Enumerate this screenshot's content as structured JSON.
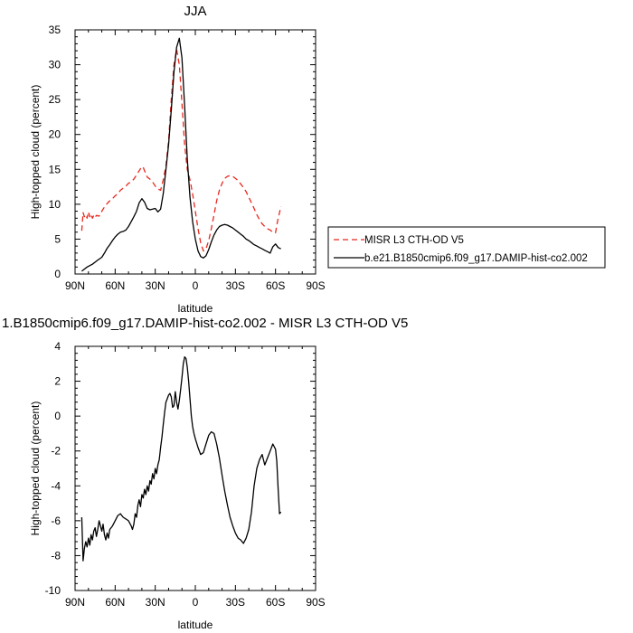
{
  "chart_data": [
    {
      "type": "line",
      "title": "JJA",
      "xlabel": "latitude",
      "ylabel": "High-topped cloud (percent)",
      "xlim": [
        90,
        -90
      ],
      "ylim": [
        0,
        35
      ],
      "x_ticks": [
        90,
        60,
        30,
        0,
        -30,
        -60,
        -90
      ],
      "x_tick_labels": [
        "90N",
        "60N",
        "30N",
        "0",
        "30S",
        "60S",
        "90S"
      ],
      "y_ticks": [
        0,
        5,
        10,
        15,
        20,
        25,
        30,
        35
      ],
      "y_tick_labels": [
        "0",
        "5",
        "10",
        "15",
        "20",
        "25",
        "30",
        "35"
      ],
      "grid": false,
      "legend_position": "right",
      "series": [
        {
          "name": "MISR L3 CTH-OD V5",
          "color": "#e8281e",
          "dash": "dashed",
          "x": [
            85,
            84,
            83,
            82,
            81,
            80,
            79,
            78,
            77,
            76,
            75,
            74,
            72,
            70,
            68,
            66,
            64,
            62,
            60,
            58,
            56,
            54,
            52,
            50,
            48,
            46,
            44,
            42,
            40,
            39,
            38,
            37,
            36,
            34,
            32,
            30,
            28,
            26,
            24,
            22,
            20,
            18,
            16,
            14,
            12,
            10,
            8,
            6,
            4,
            2,
            0,
            -2,
            -4,
            -6,
            -8,
            -10,
            -12,
            -14,
            -16,
            -18,
            -20,
            -22,
            -24,
            -26,
            -28,
            -30,
            -32,
            -34,
            -36,
            -38,
            -40,
            -42,
            -44,
            -46,
            -48,
            -50,
            -52,
            -54,
            -56,
            -58,
            -60,
            -61,
            -62,
            -63,
            -64
          ],
          "y": [
            6.2,
            8.8,
            8.2,
            8.5,
            8.0,
            8.9,
            8.2,
            8.6,
            8.0,
            8.4,
            8.1,
            8.4,
            8.3,
            9.0,
            9.6,
            10.1,
            10.5,
            10.8,
            11.2,
            11.5,
            12.0,
            12.3,
            12.6,
            13.0,
            13.2,
            13.6,
            14.2,
            14.8,
            15.4,
            15.3,
            14.8,
            14.4,
            13.9,
            13.6,
            13.2,
            12.6,
            12.2,
            12.0,
            13.5,
            15.5,
            19.0,
            25.0,
            30.0,
            32.2,
            30.0,
            24.5,
            18.5,
            15.0,
            13.5,
            11.5,
            9.0,
            6.5,
            4.5,
            3.3,
            3.6,
            4.8,
            6.5,
            8.5,
            10.5,
            12.0,
            13.0,
            13.7,
            14.0,
            14.1,
            14.0,
            13.7,
            13.4,
            12.9,
            12.4,
            11.8,
            11.0,
            10.2,
            9.4,
            8.5,
            7.8,
            7.2,
            6.8,
            6.5,
            6.3,
            6.0,
            5.9,
            7.0,
            8.0,
            8.8,
            9.7
          ]
        },
        {
          "name": "b.e21.B1850cmip6.f09_g17.DAMIP-hist-co2.002",
          "color": "#000000",
          "dash": "solid",
          "x": [
            85,
            83,
            81,
            79,
            77,
            75,
            73,
            70,
            68,
            66,
            64,
            62,
            60,
            58,
            56,
            54,
            52,
            50,
            48,
            46,
            44,
            42,
            40,
            38,
            36,
            34,
            32,
            30,
            28,
            26,
            24,
            22,
            20,
            18,
            16,
            14,
            12,
            10,
            8,
            6,
            4,
            2,
            0,
            -2,
            -4,
            -6,
            -8,
            -10,
            -12,
            -14,
            -16,
            -18,
            -20,
            -22,
            -24,
            -26,
            -28,
            -30,
            -32,
            -34,
            -36,
            -38,
            -40,
            -42,
            -44,
            -46,
            -48,
            -50,
            -52,
            -54,
            -56,
            -58,
            -60,
            -62,
            -64
          ],
          "y": [
            0.4,
            0.7,
            1.0,
            1.2,
            1.4,
            1.7,
            2.0,
            2.4,
            3.0,
            3.7,
            4.2,
            4.8,
            5.3,
            5.7,
            6.0,
            6.1,
            6.3,
            6.8,
            7.5,
            8.2,
            9.0,
            10.2,
            10.8,
            10.3,
            9.4,
            9.2,
            9.3,
            9.4,
            8.9,
            9.3,
            11.5,
            15.0,
            18.5,
            23.5,
            29.0,
            32.5,
            33.8,
            31.0,
            24.0,
            16.5,
            11.0,
            7.5,
            5.0,
            3.3,
            2.5,
            2.3,
            2.6,
            3.5,
            4.6,
            5.6,
            6.3,
            6.8,
            7.0,
            7.1,
            7.0,
            6.8,
            6.6,
            6.3,
            6.0,
            5.7,
            5.4,
            5.0,
            4.8,
            4.5,
            4.2,
            4.0,
            3.8,
            3.6,
            3.4,
            3.2,
            3.0,
            3.9,
            4.3,
            3.8,
            3.6
          ]
        }
      ]
    },
    {
      "type": "line",
      "title": "1.B1850cmip6.f09_g17.DAMIP-hist-co2.002 - MISR L3 CTH-OD V5",
      "xlabel": "latitude",
      "ylabel": "High-topped cloud (percent)",
      "xlim": [
        90,
        -90
      ],
      "ylim": [
        -10,
        4
      ],
      "x_ticks": [
        90,
        60,
        30,
        0,
        -30,
        -60,
        -90
      ],
      "x_tick_labels": [
        "90N",
        "60N",
        "30N",
        "0",
        "30S",
        "60S",
        "90S"
      ],
      "y_ticks": [
        -10,
        -8,
        -6,
        -4,
        -2,
        0,
        2,
        4
      ],
      "y_tick_labels": [
        "-10",
        "-8",
        "-6",
        "-4",
        "-2",
        "0",
        "2",
        "4"
      ],
      "grid": false,
      "series": [
        {
          "color": "#000000",
          "dash": "solid",
          "x": [
            85,
            84,
            83,
            82,
            81,
            80,
            79,
            78,
            77,
            76,
            75,
            74,
            73,
            72,
            71,
            70,
            69,
            68,
            67,
            66,
            65,
            64,
            62,
            60,
            58,
            56,
            54,
            52,
            50,
            48,
            47,
            46,
            45,
            44,
            43,
            42,
            41,
            40,
            39,
            38,
            37,
            36,
            35,
            34,
            33,
            32,
            31,
            30,
            29,
            28,
            27,
            26,
            25,
            24,
            23,
            22,
            21,
            20,
            19,
            18,
            17,
            16,
            15,
            14,
            13,
            12,
            11,
            10,
            9,
            8,
            7,
            6,
            5,
            4,
            3,
            2,
            1,
            0,
            -2,
            -4,
            -6,
            -8,
            -10,
            -12,
            -14,
            -16,
            -18,
            -20,
            -22,
            -24,
            -26,
            -28,
            -30,
            -32,
            -34,
            -36,
            -38,
            -40,
            -42,
            -44,
            -46,
            -48,
            -50,
            -52,
            -54,
            -56,
            -58,
            -60,
            -61,
            -62,
            -63,
            -64
          ],
          "y": [
            -5.8,
            -8.3,
            -7.6,
            -7.2,
            -7.5,
            -7.0,
            -7.4,
            -6.8,
            -7.1,
            -6.6,
            -6.4,
            -6.9,
            -6.5,
            -6.0,
            -6.3,
            -6.6,
            -6.2,
            -6.8,
            -7.1,
            -6.7,
            -7.0,
            -6.5,
            -6.3,
            -6.0,
            -5.7,
            -5.6,
            -5.8,
            -5.9,
            -6.0,
            -6.3,
            -6.5,
            -6.2,
            -5.6,
            -5.8,
            -5.1,
            -4.8,
            -5.2,
            -4.5,
            -4.7,
            -4.2,
            -4.5,
            -4.0,
            -4.3,
            -3.7,
            -3.9,
            -3.3,
            -3.6,
            -3.0,
            -3.3,
            -2.8,
            -2.5,
            -1.8,
            -1.2,
            -0.5,
            0.2,
            0.8,
            1.0,
            1.2,
            1.3,
            1.1,
            0.5,
            0.6,
            1.4,
            0.8,
            0.4,
            0.9,
            1.5,
            2.2,
            3.0,
            3.4,
            3.3,
            2.8,
            2.0,
            1.0,
            0.0,
            -0.6,
            -1.0,
            -1.3,
            -1.8,
            -2.2,
            -2.1,
            -1.6,
            -1.1,
            -0.9,
            -1.0,
            -1.6,
            -2.4,
            -3.4,
            -4.3,
            -5.1,
            -5.8,
            -6.3,
            -6.7,
            -7.0,
            -7.1,
            -7.3,
            -7.0,
            -6.5,
            -5.5,
            -4.0,
            -3.0,
            -2.5,
            -2.2,
            -2.8,
            -2.4,
            -2.0,
            -1.6,
            -1.9,
            -2.6,
            -4.2,
            -5.6,
            -5.5
          ]
        }
      ]
    }
  ]
}
